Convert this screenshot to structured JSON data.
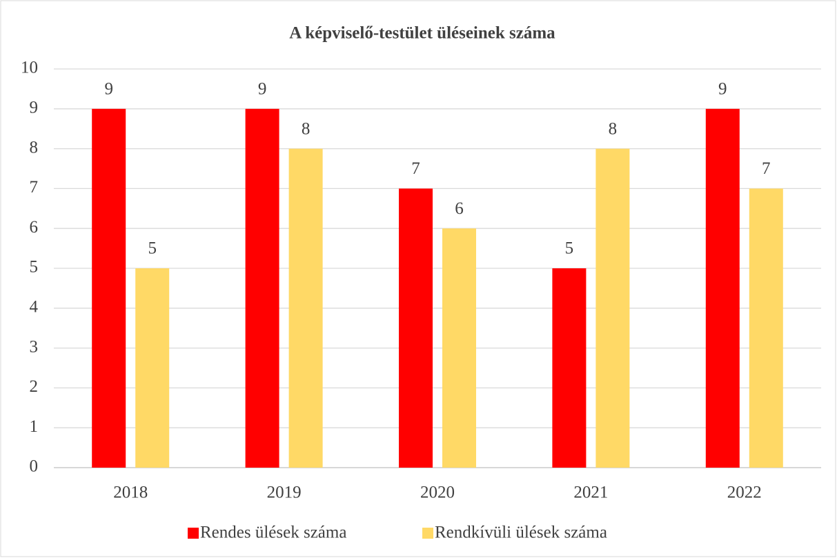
{
  "chart_data": {
    "type": "bar",
    "title": "A képviselő-testület üléseinek száma",
    "categories": [
      "2018",
      "2019",
      "2020",
      "2021",
      "2022"
    ],
    "series": [
      {
        "name": "Rendes ülések száma",
        "color": "#ff0000",
        "values": [
          9,
          9,
          7,
          5,
          9
        ]
      },
      {
        "name": "Rendkívüli ülések száma",
        "color": "#ffd966",
        "values": [
          5,
          8,
          6,
          8,
          7
        ]
      }
    ],
    "ylim": [
      0,
      10
    ],
    "yticks": [
      0,
      1,
      2,
      3,
      4,
      5,
      6,
      7,
      8,
      9,
      10
    ],
    "grid": true,
    "legend": "bottom"
  }
}
